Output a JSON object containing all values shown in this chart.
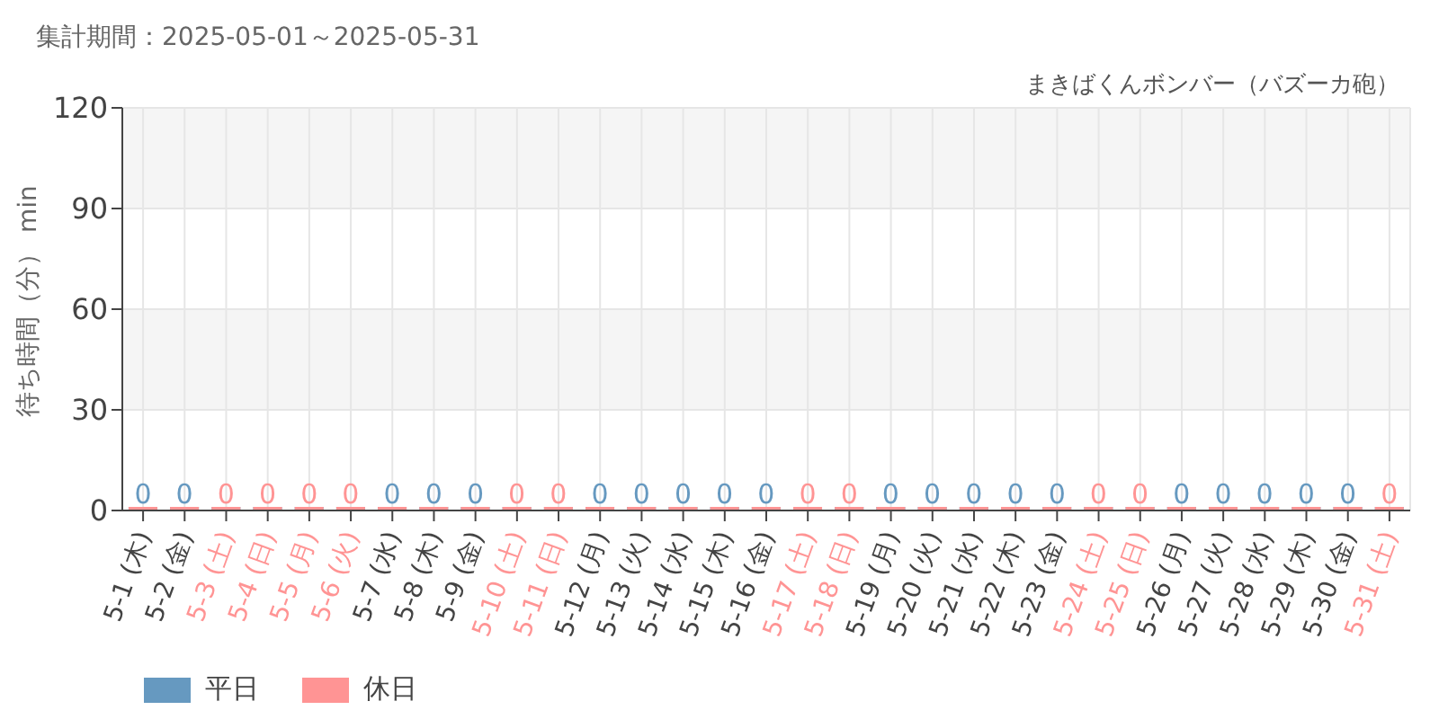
{
  "chart_data": {
    "type": "bar",
    "title": "集計期間：2025-05-01～2025-05-31",
    "subtitle": "まきばくんボンバー（バズーカ砲）",
    "ylabel": "待ち時間（分） min",
    "categories": [
      "5-1 (木)",
      "5-2 (金)",
      "5-3 (土)",
      "5-4 (日)",
      "5-5 (月)",
      "5-6 (火)",
      "5-7 (水)",
      "5-8 (木)",
      "5-9 (金)",
      "5-10 (土)",
      "5-11 (日)",
      "5-12 (月)",
      "5-13 (火)",
      "5-14 (水)",
      "5-15 (木)",
      "5-16 (金)",
      "5-17 (土)",
      "5-18 (日)",
      "5-19 (月)",
      "5-20 (火)",
      "5-21 (水)",
      "5-22 (木)",
      "5-23 (金)",
      "5-24 (土)",
      "5-25 (日)",
      "5-26 (月)",
      "5-27 (火)",
      "5-28 (水)",
      "5-29 (木)",
      "5-30 (金)",
      "5-31 (土)"
    ],
    "series": [
      {
        "name": "平日",
        "color": "#6699c0",
        "values": [
          0,
          0,
          null,
          null,
          null,
          null,
          0,
          0,
          0,
          null,
          null,
          0,
          0,
          0,
          0,
          0,
          null,
          null,
          0,
          0,
          0,
          0,
          0,
          null,
          null,
          0,
          0,
          0,
          0,
          0,
          null
        ]
      },
      {
        "name": "休日",
        "color": "#ff9494",
        "values": [
          null,
          null,
          0,
          0,
          0,
          0,
          null,
          null,
          null,
          0,
          0,
          null,
          null,
          null,
          null,
          null,
          0,
          0,
          null,
          null,
          null,
          null,
          null,
          0,
          0,
          null,
          null,
          null,
          null,
          null,
          0
        ]
      }
    ],
    "stacked": true,
    "ylim": [
      0,
      120
    ],
    "yticks": [
      0,
      30,
      60,
      90,
      120
    ],
    "grid": true,
    "legend": "bottom left",
    "data_labels": true
  }
}
